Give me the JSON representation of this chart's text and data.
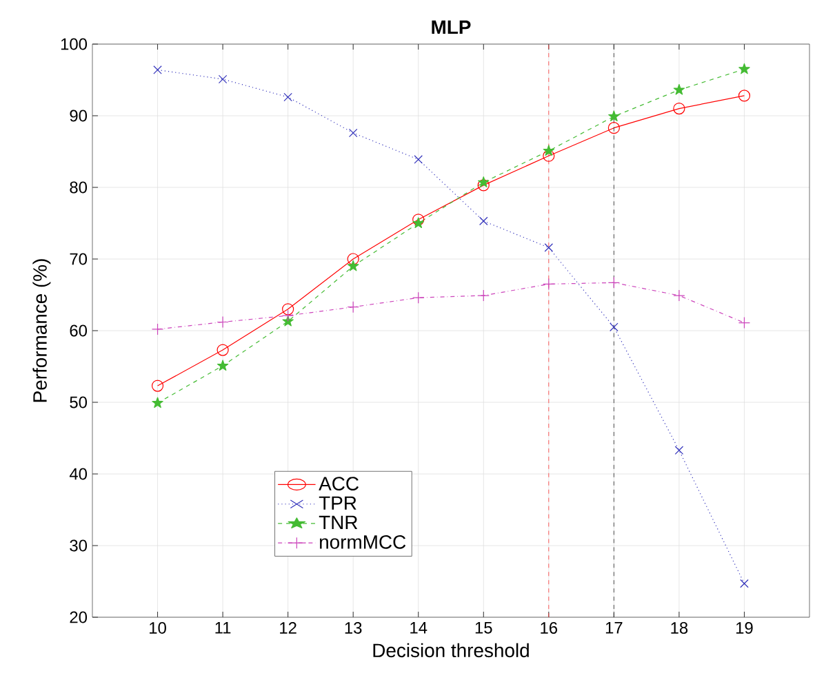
{
  "chart_data": {
    "type": "line",
    "title": "MLP",
    "xlabel": "Decision threshold",
    "ylabel": "Performance (%)",
    "x": [
      10,
      11,
      12,
      13,
      14,
      15,
      16,
      17,
      18,
      19
    ],
    "series": [
      {
        "name": "ACC",
        "color": "#ff0000",
        "marker": "circle",
        "line_style": "solid",
        "values": [
          52.3,
          57.3,
          63.0,
          70.0,
          75.5,
          80.3,
          84.4,
          88.3,
          91.0,
          92.8
        ]
      },
      {
        "name": "TPR",
        "color": "#3333bb",
        "marker": "cross",
        "line_style": "dotted",
        "values": [
          96.4,
          95.1,
          92.6,
          87.6,
          83.9,
          75.3,
          71.6,
          60.5,
          43.3,
          24.7
        ]
      },
      {
        "name": "TNR",
        "color": "#44bb33",
        "marker": "star",
        "line_style": "dashed",
        "values": [
          49.9,
          55.1,
          61.3,
          69.0,
          75.0,
          80.7,
          85.1,
          89.9,
          93.6,
          96.5
        ]
      },
      {
        "name": "normMCC",
        "color": "#cc44bb",
        "marker": "plus",
        "line_style": "dashdot",
        "values": [
          60.2,
          61.2,
          62.1,
          63.3,
          64.6,
          64.9,
          66.5,
          66.7,
          64.9,
          61.1
        ]
      }
    ],
    "xlim": [
      9,
      20
    ],
    "xticks": [
      10,
      11,
      12,
      13,
      14,
      15,
      16,
      17,
      18,
      19
    ],
    "ylim": [
      20,
      100
    ],
    "yticks": [
      20,
      30,
      40,
      50,
      60,
      70,
      80,
      90,
      100
    ],
    "ref_lines": [
      {
        "axis": "x",
        "value": 16,
        "color": "#ff3333",
        "line_style": "dashed"
      },
      {
        "axis": "x",
        "value": 17,
        "color": "#222222",
        "line_style": "dashed"
      }
    ],
    "grid": true,
    "legend": "bottom left"
  }
}
